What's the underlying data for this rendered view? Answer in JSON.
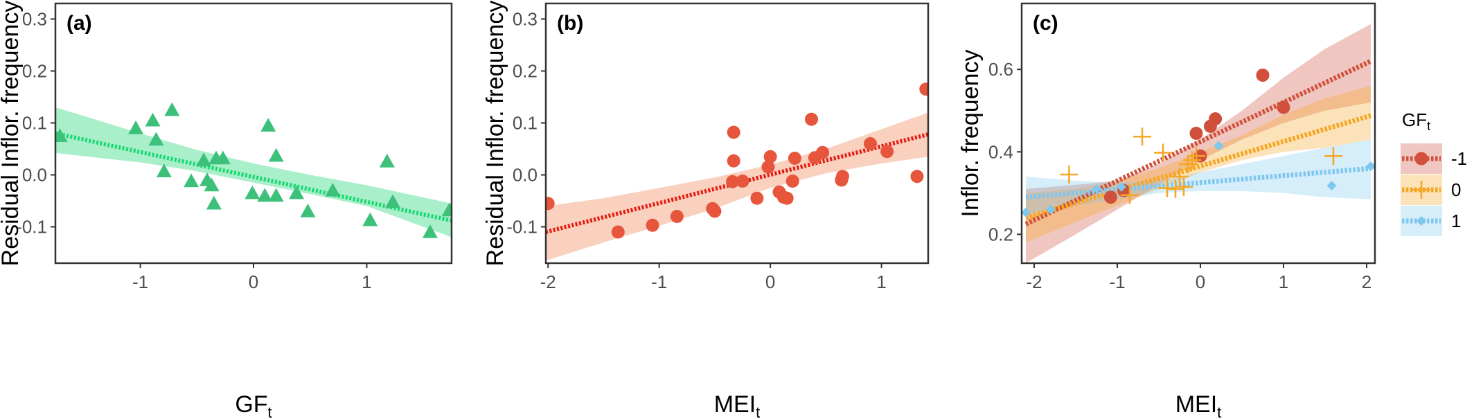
{
  "colors": {
    "panel_a": "#3cc07a",
    "panel_a_line": "#19d873",
    "panel_a_band": "#9aecbf",
    "panel_b": "#e8553d",
    "panel_b_line": "#e41b12",
    "panel_b_band": "#f8c9b3",
    "gf_neg1": "#d1503c",
    "gf_0": "#f5a623",
    "gf_1": "#7ec8ef"
  },
  "chart_data": [
    {
      "panel": "(a)",
      "type": "scatter",
      "xlabel": "GF",
      "xlabel_sub": "t",
      "ylabel": "Residual Inflor. frequency",
      "xlim": [
        -1.75,
        1.75
      ],
      "ylim": [
        -0.17,
        0.33
      ],
      "xticks": [
        -1,
        0,
        1
      ],
      "xtick_labels": [
        "-1",
        "0",
        "1"
      ],
      "yticks": [
        -0.1,
        0.0,
        0.1,
        0.2,
        0.3
      ],
      "ytick_labels": [
        "-0.1",
        "0.0",
        "0.1",
        "0.2",
        "0.3"
      ],
      "grid": false,
      "marker": "triangle",
      "points": [
        [
          -1.71,
          0.075
        ],
        [
          -1.04,
          0.09
        ],
        [
          -0.89,
          0.105
        ],
        [
          -0.72,
          0.125
        ],
        [
          -0.86,
          0.068
        ],
        [
          -0.79,
          0.007
        ],
        [
          -0.55,
          -0.012
        ],
        [
          -0.44,
          0.028
        ],
        [
          -0.41,
          -0.01
        ],
        [
          -0.37,
          -0.02
        ],
        [
          -0.33,
          0.032
        ],
        [
          -0.27,
          0.032
        ],
        [
          -0.35,
          -0.055
        ],
        [
          -0.01,
          -0.035
        ],
        [
          0.1,
          -0.04
        ],
        [
          0.13,
          0.095
        ],
        [
          0.2,
          0.037
        ],
        [
          0.2,
          -0.04
        ],
        [
          0.38,
          -0.035
        ],
        [
          0.48,
          -0.07
        ],
        [
          0.7,
          -0.03
        ],
        [
          1.03,
          -0.087
        ],
        [
          1.18,
          0.026
        ],
        [
          1.23,
          -0.052
        ],
        [
          1.56,
          -0.11
        ],
        [
          1.73,
          -0.068
        ]
      ],
      "fit": {
        "x": [
          -1.75,
          1.75
        ],
        "y": [
          0.08,
          -0.088
        ]
      },
      "band": {
        "x": [
          -1.75,
          -1.0,
          -0.5,
          0.0,
          0.5,
          1.0,
          1.75
        ],
        "lower": [
          0.042,
          0.024,
          0.007,
          -0.015,
          -0.037,
          -0.06,
          -0.12
        ],
        "upper": [
          0.13,
          0.08,
          0.048,
          0.022,
          0.0,
          -0.02,
          -0.055
        ]
      }
    },
    {
      "panel": "(b)",
      "type": "scatter",
      "xlabel": "MEI",
      "xlabel_sub": "t",
      "ylabel": "Residual Inflor. frequency",
      "xlim": [
        -2.02,
        1.42
      ],
      "ylim": [
        -0.17,
        0.33
      ],
      "xticks": [
        -2,
        -1,
        0,
        1
      ],
      "xtick_labels": [
        "-2",
        "-1",
        "0",
        "1"
      ],
      "yticks": [
        -0.1,
        0.0,
        0.1,
        0.2,
        0.3
      ],
      "ytick_labels": [
        "-0.1",
        "0.0",
        "0.1",
        "0.2",
        "0.3"
      ],
      "grid": false,
      "marker": "circle",
      "points": [
        [
          -2.0,
          -0.055
        ],
        [
          -1.37,
          -0.11
        ],
        [
          -1.06,
          -0.097
        ],
        [
          -0.84,
          -0.08
        ],
        [
          -0.52,
          -0.065
        ],
        [
          -0.5,
          -0.07
        ],
        [
          -0.33,
          0.082
        ],
        [
          -0.33,
          0.027
        ],
        [
          -0.34,
          -0.013
        ],
        [
          -0.25,
          -0.012
        ],
        [
          -0.12,
          -0.045
        ],
        [
          -0.02,
          0.015
        ],
        [
          0.0,
          0.035
        ],
        [
          0.08,
          -0.033
        ],
        [
          0.12,
          -0.043
        ],
        [
          0.15,
          -0.045
        ],
        [
          0.22,
          0.032
        ],
        [
          0.2,
          -0.012
        ],
        [
          0.37,
          0.107
        ],
        [
          0.4,
          0.033
        ],
        [
          0.47,
          0.043
        ],
        [
          0.65,
          -0.003
        ],
        [
          0.64,
          -0.01
        ],
        [
          0.9,
          0.06
        ],
        [
          1.05,
          0.045
        ],
        [
          1.32,
          -0.003
        ],
        [
          1.4,
          0.165
        ]
      ],
      "fit": {
        "x": [
          -2.02,
          1.42
        ],
        "y": [
          -0.11,
          0.078
        ]
      },
      "band": {
        "x": [
          -2.02,
          -1.5,
          -1.0,
          -0.5,
          0.0,
          0.5,
          1.0,
          1.42
        ],
        "lower": [
          -0.165,
          -0.13,
          -0.098,
          -0.065,
          -0.025,
          0.003,
          0.022,
          0.035
        ],
        "upper": [
          -0.06,
          -0.045,
          -0.025,
          -0.005,
          0.02,
          0.05,
          0.088,
          0.12
        ]
      }
    },
    {
      "panel": "(c)",
      "type": "scatter",
      "xlabel": "MEI",
      "xlabel_sub": "t",
      "ylabel": "Inflor. frequency",
      "xlim": [
        -2.15,
        2.1
      ],
      "ylim": [
        0.13,
        0.76
      ],
      "xticks": [
        -2,
        -1,
        0,
        1,
        2
      ],
      "xtick_labels": [
        "-2",
        "-1",
        "0",
        "1",
        "2"
      ],
      "yticks": [
        0.2,
        0.4,
        0.6
      ],
      "ytick_labels": [
        "0.2",
        "0.4",
        "0.6"
      ],
      "grid": false,
      "legend": {
        "title": "GF",
        "title_sub": "t",
        "placement": "right"
      },
      "series": [
        {
          "name": "-1",
          "color_key": "gf_neg1",
          "marker": "circle",
          "points": [
            [
              -1.08,
              0.29
            ],
            [
              -0.92,
              0.306
            ],
            [
              -0.05,
              0.445
            ],
            [
              0.12,
              0.462
            ],
            [
              0.18,
              0.48
            ],
            [
              0.0,
              0.39
            ],
            [
              0.75,
              0.586
            ],
            [
              1.0,
              0.508
            ]
          ],
          "fit": {
            "x": [
              -2.1,
              2.05
            ],
            "y": [
              0.225,
              0.62
            ]
          },
          "band": {
            "x": [
              -2.1,
              -1.5,
              -1.0,
              -0.5,
              0.0,
              0.5,
              1.0,
              1.5,
              2.05
            ],
            "lower": [
              0.13,
              0.2,
              0.26,
              0.32,
              0.38,
              0.43,
              0.47,
              0.5,
              0.52
            ],
            "upper": [
              0.31,
              0.32,
              0.33,
              0.37,
              0.43,
              0.5,
              0.58,
              0.65,
              0.71
            ]
          }
        },
        {
          "name": "0",
          "color_key": "gf_0",
          "marker": "plus",
          "points": [
            [
              -1.58,
              0.345
            ],
            [
              -0.7,
              0.437
            ],
            [
              -0.85,
              0.295
            ],
            [
              -0.45,
              0.398
            ],
            [
              -0.4,
              0.312
            ],
            [
              -0.25,
              0.34
            ],
            [
              -0.2,
              0.315
            ],
            [
              -0.15,
              0.37
            ],
            [
              -0.1,
              0.38
            ],
            [
              -0.05,
              0.39
            ],
            [
              -0.3,
              0.31
            ],
            [
              1.6,
              0.39
            ]
          ],
          "fit": {
            "x": [
              -2.1,
              2.05
            ],
            "y": [
              0.24,
              0.488
            ]
          },
          "band": {
            "x": [
              -2.1,
              -1.5,
              -1.0,
              -0.5,
              0.0,
              0.5,
              1.0,
              1.5,
              2.05
            ],
            "lower": [
              0.18,
              0.23,
              0.27,
              0.31,
              0.35,
              0.38,
              0.4,
              0.41,
              0.43
            ],
            "upper": [
              0.3,
              0.31,
              0.33,
              0.36,
              0.4,
              0.44,
              0.49,
              0.53,
              0.56
            ]
          }
        },
        {
          "name": "1",
          "color_key": "gf_1",
          "marker": "diamond",
          "points": [
            [
              -2.1,
              0.253
            ],
            [
              -1.8,
              0.26
            ],
            [
              -1.25,
              0.31
            ],
            [
              -0.95,
              0.315
            ],
            [
              0.22,
              0.415
            ],
            [
              1.58,
              0.318
            ],
            [
              2.05,
              0.365
            ]
          ],
          "fit": {
            "x": [
              -2.1,
              2.05
            ],
            "y": [
              0.29,
              0.36
            ]
          },
          "band": {
            "x": [
              -2.1,
              -1.5,
              -1.0,
              -0.5,
              0.0,
              0.5,
              1.0,
              1.5,
              2.05
            ],
            "lower": [
              0.25,
              0.27,
              0.285,
              0.3,
              0.305,
              0.305,
              0.3,
              0.29,
              0.285
            ],
            "upper": [
              0.34,
              0.33,
              0.325,
              0.33,
              0.35,
              0.37,
              0.39,
              0.41,
              0.43
            ]
          }
        }
      ]
    }
  ]
}
